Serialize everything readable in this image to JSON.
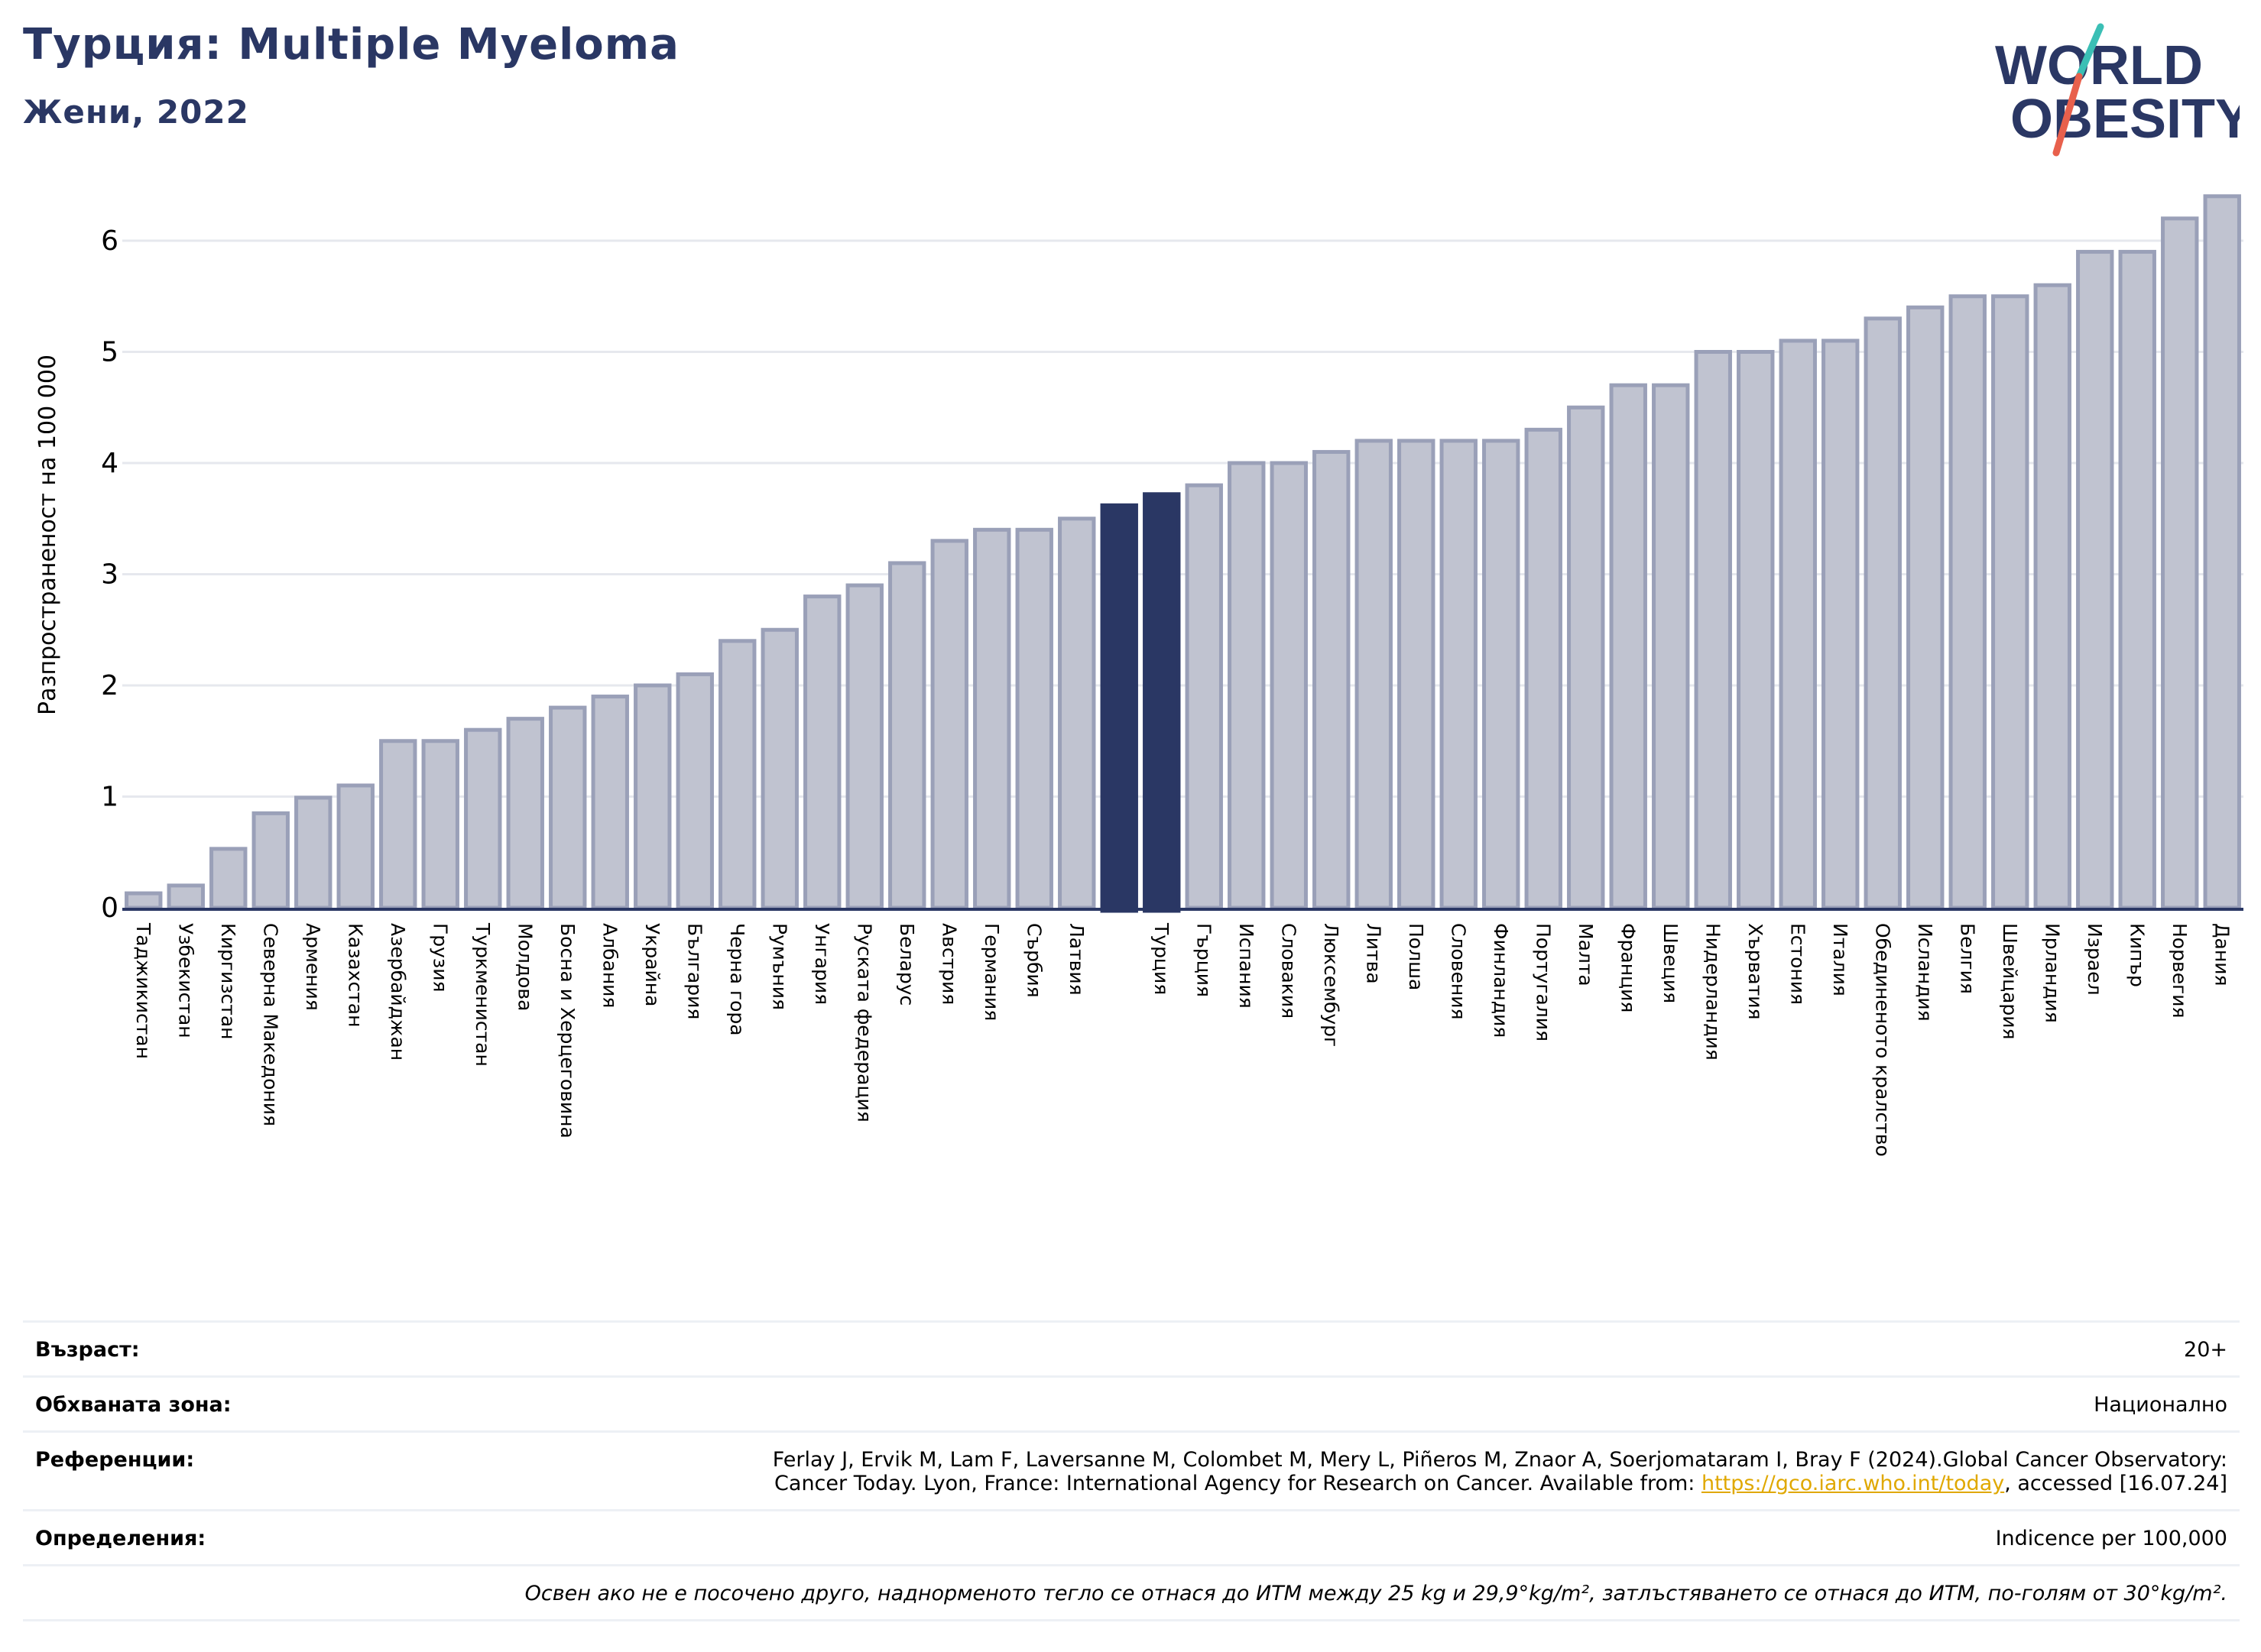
{
  "header": {
    "title": "Турция: Multiple Myeloma",
    "subtitle": "Жени, 2022"
  },
  "logo": {
    "line1": "WORLD",
    "line2": "OBESITY",
    "text_color": "#2a3764",
    "slash_color_top": "#3bbfb5",
    "slash_color_bottom": "#e8604c"
  },
  "chart_data": {
    "type": "bar",
    "ylabel": "Разпространеност  на 100 000",
    "ylim": [
      0,
      6.5
    ],
    "yticks": [
      0,
      1,
      2,
      3,
      4,
      5,
      6
    ],
    "grid": true,
    "highlighted": [
      "Турция"
    ],
    "colors": {
      "bar": "#c0c3d0",
      "bar_border": "#9aa0b8",
      "highlight": "#2a3764"
    },
    "categories": [
      "Таджикистан",
      "Узбекистан",
      "Киргизстан",
      "Северна Македония",
      "Армения",
      "Казахстан",
      "Азербайджан",
      "Грузия",
      "Туркменистан",
      "Молдова",
      "Босна и Херцеговина",
      "Албания",
      "Украйна",
      "България",
      "Черна гора",
      "Румъния",
      "Унгария",
      "Руската федерация",
      "Беларус",
      "Австрия",
      "Германия",
      "Сърбия",
      "Латвия",
      "",
      "Турция",
      "Гърция",
      "Испания",
      "Словакия",
      "Люксембург",
      "Литва",
      "Полша",
      "Словения",
      "Финландия",
      "Португалия",
      "Малта",
      "Франция",
      "Швеция",
      "Нидерландия",
      "Хърватия",
      "Естония",
      "Италия",
      "Обединеното кралство",
      "Исландия",
      "Белгия",
      "Швейцария",
      "Ирландия",
      "Израел",
      "Кипър",
      "Норвегия",
      "Дания"
    ],
    "values": [
      0.13,
      0.2,
      0.53,
      0.85,
      0.99,
      1.1,
      1.5,
      1.5,
      1.6,
      1.7,
      1.8,
      1.9,
      2.0,
      2.1,
      2.4,
      2.5,
      2.8,
      2.9,
      3.1,
      3.3,
      3.4,
      3.4,
      3.5,
      3.62,
      3.72,
      3.8,
      4.0,
      4.0,
      4.1,
      4.2,
      4.2,
      4.2,
      4.2,
      4.3,
      4.5,
      4.7,
      4.7,
      5.0,
      5.0,
      5.1,
      5.1,
      5.3,
      5.4,
      5.5,
      5.5,
      5.6,
      5.9,
      5.9,
      6.2,
      6.4
    ],
    "highlight_index": [
      23,
      24
    ]
  },
  "info": {
    "rows": [
      {
        "label": "Възраст:",
        "value": "20+"
      },
      {
        "label": "Обхваната зона:",
        "value": "Национално"
      },
      {
        "label": "Референции:",
        "value_line1": "Ferlay J, Ervik M, Lam F, Laversanne M, Colombet M, Mery L, Piñeros M, Znaor A, Soerjomataram I, Bray F (2024).Global Cancer Observatory:",
        "value_line2_pre": "Cancer Today. Lyon, France: International Agency for Research on Cancer. Available from: ",
        "value_link": "https://gco.iarc.who.int/today",
        "value_line2_post": ", accessed [16.07.24]"
      },
      {
        "label": "Определения:",
        "value": "Indicence per 100,000"
      }
    ],
    "note": "Освен ако не е посочено друго, наднорменото тегло се отнася до ИТМ между 25 kg и 29,9°kg/m², затлъстяването се отнася до ИТМ, по-голям от 30°kg/m²."
  }
}
